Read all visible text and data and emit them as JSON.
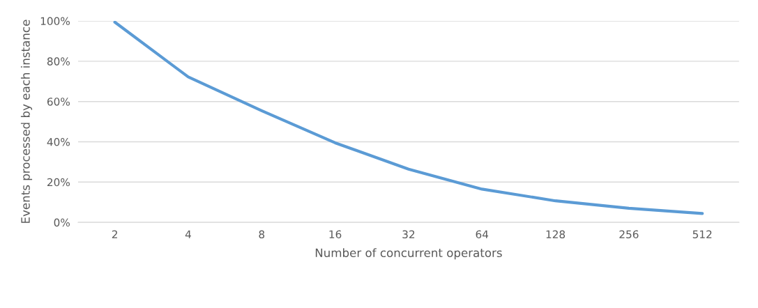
{
  "chart_data": {
    "type": "line",
    "xlabel": "Number of concurrent operators",
    "ylabel": "Events processed by each instance",
    "categories": [
      "2",
      "4",
      "8",
      "16",
      "32",
      "64",
      "128",
      "256",
      "512"
    ],
    "series": [
      {
        "color": "#5b9bd5",
        "values": [
          99.4,
          72.2,
          55.4,
          39.5,
          26.4,
          16.5,
          10.7,
          7.0,
          4.4
        ]
      }
    ],
    "ylim": [
      0,
      100
    ],
    "yticks": [
      {
        "value": 0,
        "label": "0%"
      },
      {
        "value": 20,
        "label": "20%"
      },
      {
        "value": 40,
        "label": "40%"
      },
      {
        "value": 60,
        "label": "60%"
      },
      {
        "value": 80,
        "label": "80%"
      },
      {
        "value": 100,
        "label": "100%"
      }
    ],
    "grid": "y",
    "legend": false,
    "marker": "none",
    "line_style": "solid"
  }
}
